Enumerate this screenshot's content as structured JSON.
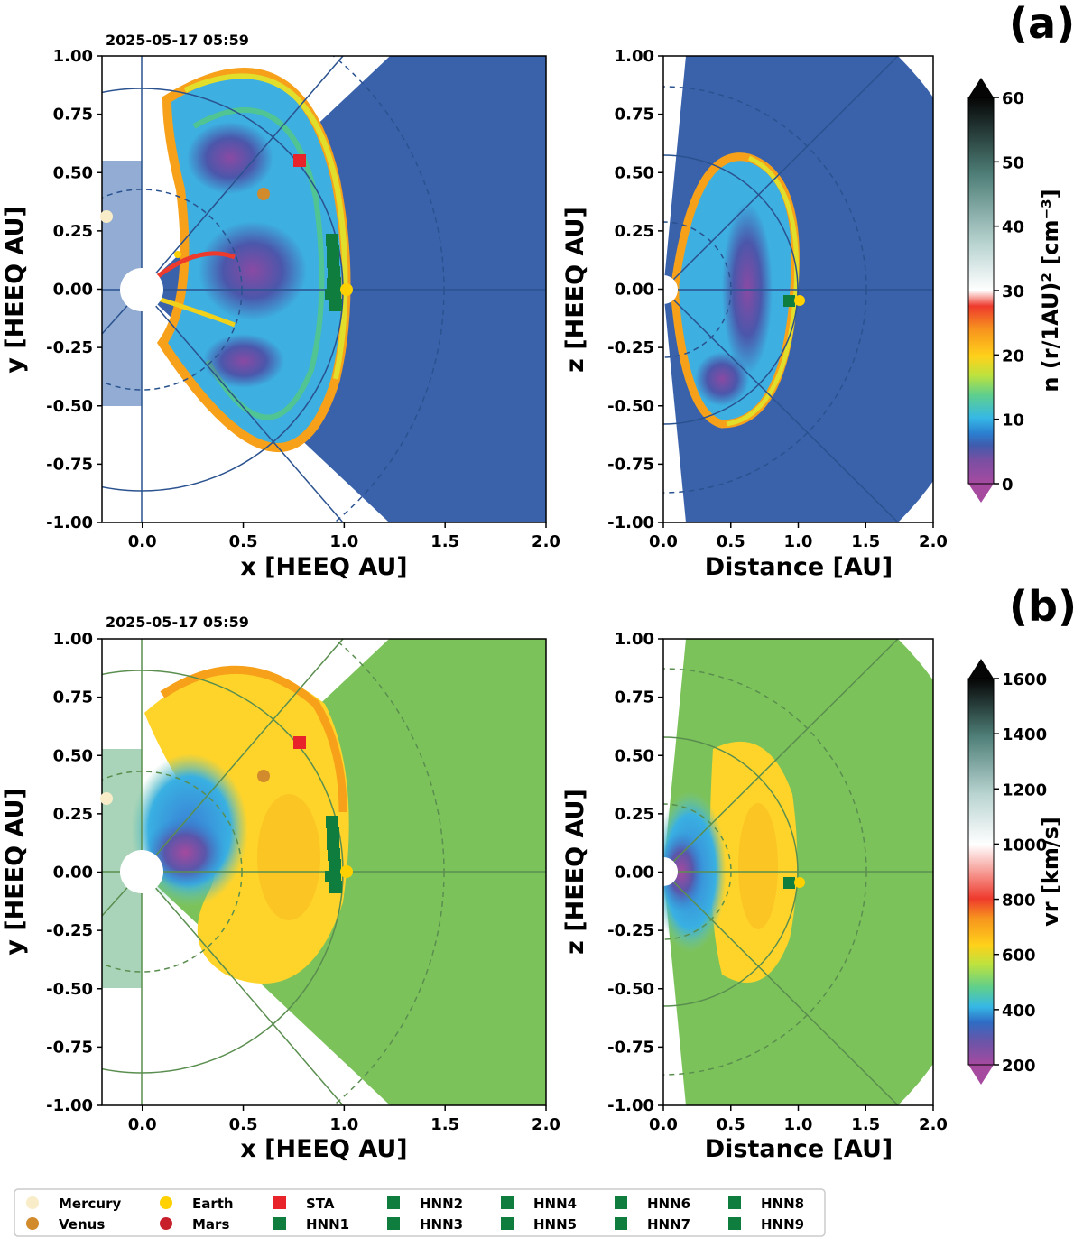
{
  "figure": {
    "panel_labels": [
      "(a)",
      "(b)"
    ]
  },
  "colors": {
    "background_a": "#3a62ab",
    "background_b": "#7cc25a",
    "sun": "#ffffff",
    "grid_line_a": "#2d559c",
    "grid_line_b": "#5f9a50"
  },
  "chart_data": [
    {
      "id": "a-left",
      "type": "heatmap",
      "timestamp": "2025-05-17 05:59",
      "xlabel": "x [HEEQ AU]",
      "ylabel": "y [HEEQ AU]",
      "xlim": [
        -0.2,
        2.0
      ],
      "ylim": [
        -1.0,
        1.0
      ],
      "xticks": [
        "0.0",
        "0.5",
        "1.0",
        "1.5",
        "2.0"
      ],
      "yticks": [
        "1.00",
        "0.75",
        "0.50",
        "0.25",
        "0.00",
        "-0.25",
        "-0.50",
        "-0.75",
        "-1.00"
      ],
      "quantity": "density",
      "bodies": [
        {
          "name": "Mercury",
          "x": -0.18,
          "y": 0.31
        },
        {
          "name": "Venus",
          "x": 0.61,
          "y": 0.41
        },
        {
          "name": "Earth",
          "x": 1.02,
          "y": 0.0
        },
        {
          "name": "Mars",
          "x": 0.18,
          "y": 0.15
        },
        {
          "name": "STA",
          "x": 0.79,
          "y": 0.55
        }
      ],
      "hnn_probes": {
        "x": 0.95,
        "y_range": [
          -0.1,
          0.13
        ]
      }
    },
    {
      "id": "a-right",
      "type": "heatmap",
      "xlabel": "Distance [AU]",
      "ylabel": "z [HEEQ AU]",
      "xlim": [
        0.0,
        2.0
      ],
      "ylim": [
        -1.0,
        1.0
      ],
      "xticks": [
        "0.0",
        "0.5",
        "1.0",
        "1.5",
        "2.0"
      ],
      "yticks": [
        "1.00",
        "0.75",
        "0.50",
        "0.25",
        "0.00",
        "-0.25",
        "-0.50",
        "-0.75",
        "-1.00"
      ],
      "quantity": "density",
      "bodies": [
        {
          "name": "Earth",
          "x": 1.02,
          "y": -0.05
        }
      ],
      "hnn_probes": {
        "x": 0.95,
        "y": -0.05
      }
    },
    {
      "id": "b-left",
      "type": "heatmap",
      "timestamp": "2025-05-17 05:59",
      "xlabel": "x [HEEQ AU]",
      "ylabel": "y [HEEQ AU]",
      "xlim": [
        -0.2,
        2.0
      ],
      "ylim": [
        -1.0,
        1.0
      ],
      "xticks": [
        "0.0",
        "0.5",
        "1.0",
        "1.5",
        "2.0"
      ],
      "yticks": [
        "1.00",
        "0.75",
        "0.50",
        "0.25",
        "0.00",
        "-0.25",
        "-0.50",
        "-0.75",
        "-1.00"
      ],
      "quantity": "velocity",
      "bodies": [
        {
          "name": "Mercury",
          "x": -0.18,
          "y": 0.31
        },
        {
          "name": "Venus",
          "x": 0.61,
          "y": 0.41
        },
        {
          "name": "Earth",
          "x": 1.02,
          "y": 0.0
        },
        {
          "name": "STA",
          "x": 0.79,
          "y": 0.55
        }
      ],
      "hnn_probes": {
        "x": 0.95,
        "y_range": [
          -0.1,
          0.13
        ]
      }
    },
    {
      "id": "b-right",
      "type": "heatmap",
      "xlabel": "Distance [AU]",
      "ylabel": "z [HEEQ AU]",
      "xlim": [
        0.0,
        2.0
      ],
      "ylim": [
        -1.0,
        1.0
      ],
      "xticks": [
        "0.0",
        "0.5",
        "1.0",
        "1.5",
        "2.0"
      ],
      "yticks": [
        "1.00",
        "0.75",
        "0.50",
        "0.25",
        "0.00",
        "-0.25",
        "-0.50",
        "-0.75",
        "-1.00"
      ],
      "quantity": "velocity",
      "bodies": [
        {
          "name": "Earth",
          "x": 1.02,
          "y": -0.05
        }
      ],
      "hnn_probes": {
        "x": 0.95,
        "y": -0.05
      }
    }
  ],
  "colorbars": [
    {
      "id": "cb-a",
      "label": "n (r/1AU)² [cm⁻³]",
      "ticks": [
        "60",
        "50",
        "40",
        "30",
        "20",
        "10",
        "0"
      ],
      "range": [
        0,
        60
      ]
    },
    {
      "id": "cb-b",
      "label": "vr [km/s]",
      "ticks": [
        "1600",
        "1400",
        "1200",
        "1000",
        "800",
        "600",
        "400",
        "200"
      ],
      "range": [
        200,
        1600
      ]
    }
  ],
  "legend": {
    "items": [
      {
        "label": "Mercury",
        "marker": "circle",
        "color": "#f8edc8"
      },
      {
        "label": "Venus",
        "marker": "circle",
        "color": "#d18a2c"
      },
      {
        "label": "Earth",
        "marker": "circle",
        "color": "#ffd100"
      },
      {
        "label": "Mars",
        "marker": "circle",
        "color": "#c8202a"
      },
      {
        "label": "STA",
        "marker": "square",
        "color": "#e8232a"
      },
      {
        "label": "HNN1",
        "marker": "square",
        "color": "#0e7d3e"
      },
      {
        "label": "HNN2",
        "marker": "square",
        "color": "#0e7d3e"
      },
      {
        "label": "HNN3",
        "marker": "square",
        "color": "#0e7d3e"
      },
      {
        "label": "HNN4",
        "marker": "square",
        "color": "#0e7d3e"
      },
      {
        "label": "HNN5",
        "marker": "square",
        "color": "#0e7d3e"
      },
      {
        "label": "HNN6",
        "marker": "square",
        "color": "#0e7d3e"
      },
      {
        "label": "HNN7",
        "marker": "square",
        "color": "#0e7d3e"
      },
      {
        "label": "HNN8",
        "marker": "square",
        "color": "#0e7d3e"
      },
      {
        "label": "HNN9",
        "marker": "square",
        "color": "#0e7d3e"
      }
    ]
  }
}
